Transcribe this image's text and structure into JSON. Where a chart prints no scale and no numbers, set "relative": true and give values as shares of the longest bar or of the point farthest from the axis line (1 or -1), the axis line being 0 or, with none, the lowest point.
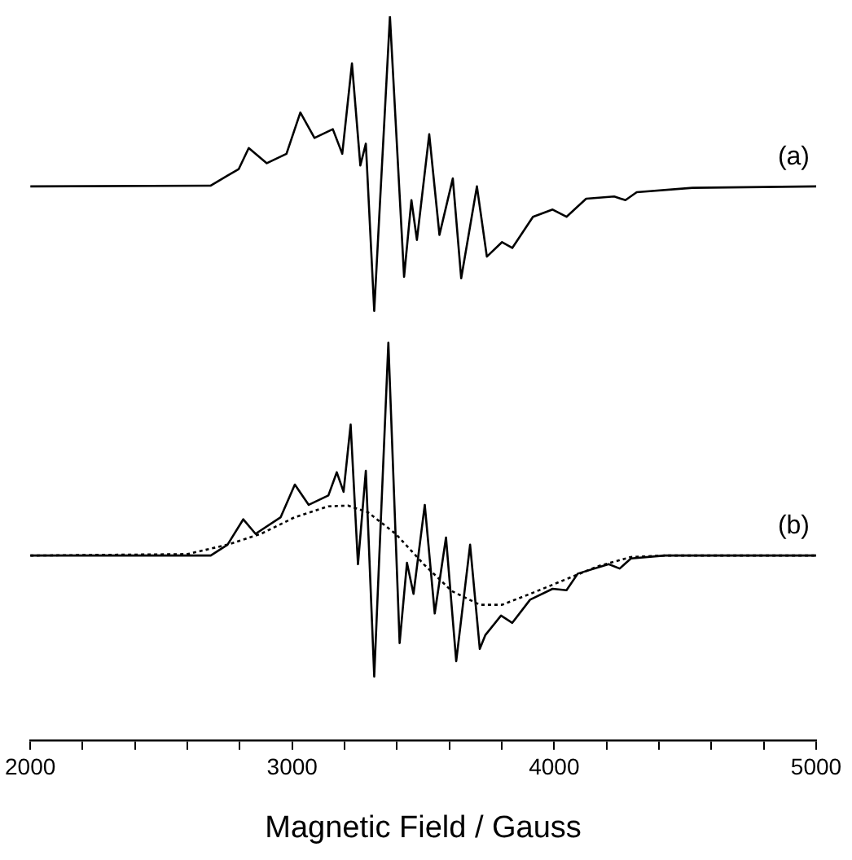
{
  "chart_data": {
    "type": "line",
    "relative": true,
    "xlabel": "Magnetic Field / Gauss",
    "xlim": [
      2000,
      5000
    ],
    "xticks": [
      2000,
      {
        "value": 2200,
        "label": null
      },
      {
        "value": 2400,
        "label": null
      },
      {
        "value": 2600,
        "label": null
      },
      {
        "value": 2800,
        "label": null
      },
      3000,
      {
        "value": 3200,
        "label": null
      },
      {
        "value": 3400,
        "label": null
      },
      {
        "value": 3600,
        "label": null
      },
      {
        "value": 3800,
        "label": null
      },
      4000,
      {
        "value": 4200,
        "label": null
      },
      {
        "value": 4400,
        "label": null
      },
      {
        "value": 4600,
        "label": null
      },
      {
        "value": 4800,
        "label": null
      },
      5000
    ],
    "grid": false,
    "legend": false,
    "marker": "none",
    "tick_labels": "x",
    "series": [
      {
        "name": "(a)",
        "color": "#000000",
        "line_style": "solid",
        "x": [
          2000,
          2689,
          2753,
          2796,
          2834,
          2903,
          2978,
          3031,
          3085,
          3155,
          3191,
          3228,
          3260,
          3281,
          3313,
          3373,
          3427,
          3455,
          3476,
          3523,
          3562,
          3613,
          3645,
          3705,
          3743,
          3801,
          3840,
          3919,
          3994,
          4047,
          4122,
          4229,
          4272,
          4315,
          4528,
          5000
        ],
        "values": [
          0.765,
          0.766,
          0.78,
          0.789,
          0.818,
          0.797,
          0.81,
          0.867,
          0.832,
          0.844,
          0.81,
          0.935,
          0.794,
          0.824,
          0.593,
          1.0,
          0.64,
          0.746,
          0.691,
          0.837,
          0.698,
          0.776,
          0.638,
          0.765,
          0.668,
          0.688,
          0.68,
          0.723,
          0.733,
          0.723,
          0.748,
          0.751,
          0.746,
          0.757,
          0.763,
          0.765
        ]
      },
      {
        "name": "(b)",
        "color": "#000000",
        "line_style": "solid",
        "x": [
          2000,
          2689,
          2753,
          2813,
          2860,
          2956,
          3010,
          3063,
          3138,
          3170,
          3196,
          3223,
          3251,
          3281,
          3313,
          3367,
          3410,
          3438,
          3463,
          3506,
          3544,
          3587,
          3626,
          3679,
          3716,
          3737,
          3797,
          3840,
          3908,
          3994,
          4047,
          4090,
          4208,
          4250,
          4293,
          4422,
          5000
        ],
        "values": [
          0.255,
          0.255,
          0.27,
          0.305,
          0.285,
          0.308,
          0.353,
          0.325,
          0.338,
          0.37,
          0.343,
          0.436,
          0.243,
          0.372,
          0.088,
          0.549,
          0.134,
          0.245,
          0.202,
          0.325,
          0.175,
          0.28,
          0.109,
          0.27,
          0.126,
          0.145,
          0.172,
          0.162,
          0.194,
          0.209,
          0.207,
          0.23,
          0.243,
          0.237,
          0.251,
          0.255,
          0.255
        ]
      },
      {
        "color": "#000000",
        "line_style": "dotted",
        "x": [
          2000,
          2600,
          2753,
          2881,
          3010,
          3138,
          3213,
          3288,
          3395,
          3502,
          3609,
          3716,
          3801,
          3908,
          4037,
          4165,
          4293,
          4422,
          5000
        ],
        "values": [
          0.255,
          0.257,
          0.27,
          0.285,
          0.308,
          0.323,
          0.324,
          0.315,
          0.285,
          0.243,
          0.206,
          0.187,
          0.187,
          0.202,
          0.221,
          0.24,
          0.253,
          0.255,
          0.255
        ]
      }
    ]
  }
}
